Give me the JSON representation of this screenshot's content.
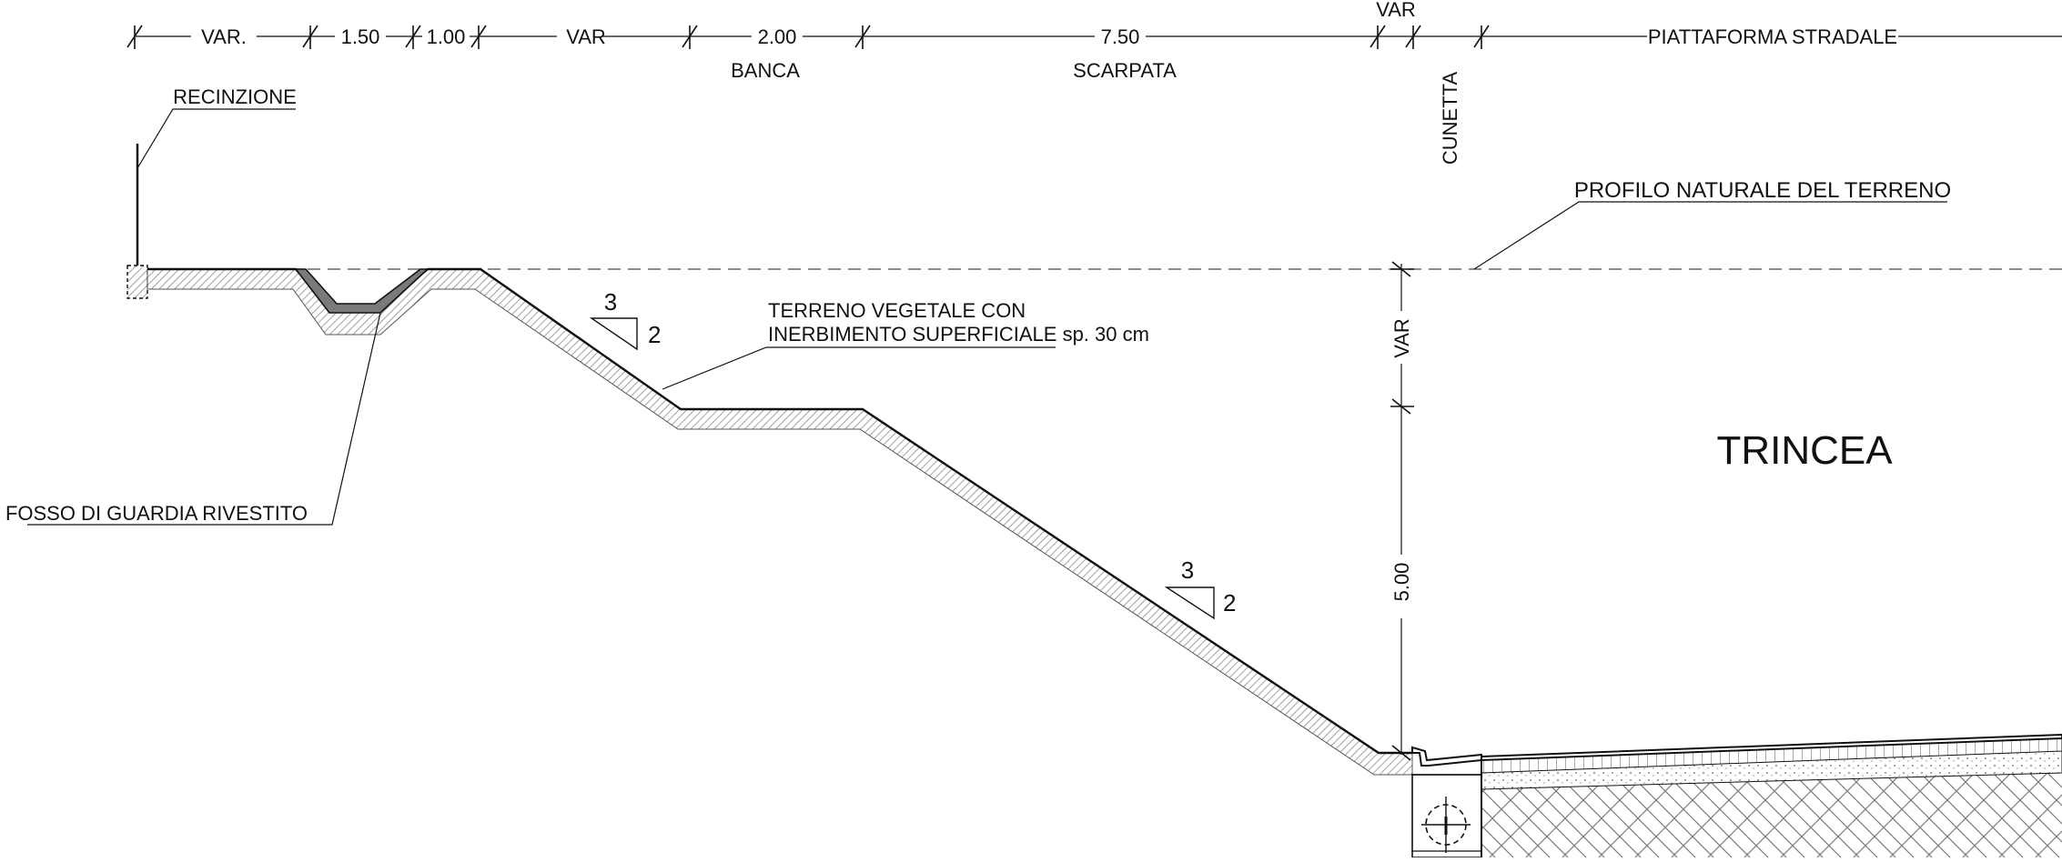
{
  "dimensions": {
    "var1": "VAR.",
    "d150": "1.50",
    "d100": "1.00",
    "var2": "VAR",
    "d200": "2.00",
    "d750": "7.50",
    "var3": "VAR",
    "piattaforma": "PIATTAFORMA STRADALE"
  },
  "section_labels": {
    "banca": "BANCA",
    "scarpata": "SCARPATA",
    "cunetta": "CUNETTA"
  },
  "callouts": {
    "recinzione": "RECINZIONE",
    "profilo": "PROFILO NATURALE DEL TERRENO",
    "terreno_line1": "TERRENO VEGETALE CON",
    "terreno_line2_underlined": "INERBIMENTO SUPERFICIALE",
    "terreno_line2_suffix": "sp. 30 cm",
    "fosso": "FOSSO DI GUARDIA RIVESTITO"
  },
  "slopes": {
    "upper_h": "3",
    "upper_v": "2",
    "lower_h": "3",
    "lower_v": "2"
  },
  "vertical_dims": {
    "var": "VAR",
    "d500": "5.00"
  },
  "title": "TRINCEA",
  "colors": {
    "line": "#111111",
    "hatch": "#9a9a9a",
    "lining": "#7a7a7a",
    "dashed": "#666666"
  }
}
